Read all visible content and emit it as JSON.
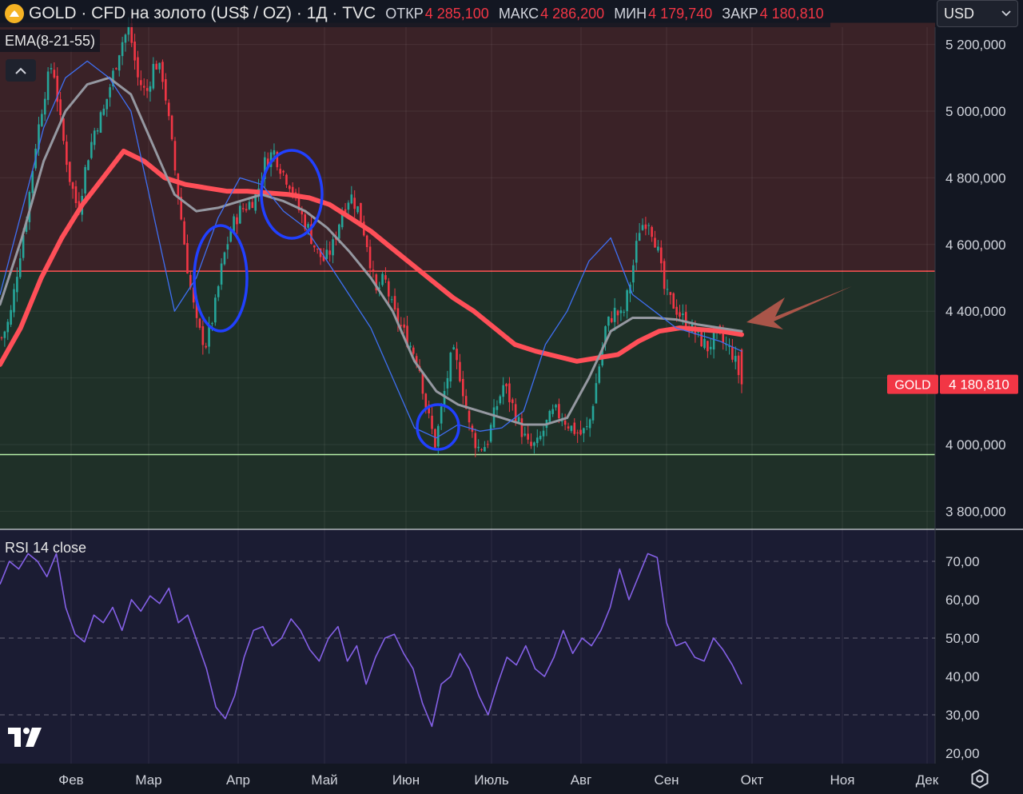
{
  "header": {
    "symbol": "GOLD · CFD на золото (US$ / OZ) · 1Д · TVC",
    "open_label": "ОТКР",
    "open_value": "4 285,100",
    "high_label": "МАКС",
    "high_value": "4 286,200",
    "low_label": "МИН",
    "low_value": "4 179,740",
    "close_label": "ЗАКР",
    "close_value": "4 180,810"
  },
  "indicator_label": "EMA(8-21-55)",
  "currency_select": {
    "value": "USD"
  },
  "rsi_label": "RSI 14 close",
  "colors": {
    "background": "#131722",
    "upper_zone": "#3a2227",
    "lower_zone": "#1f3028",
    "up_candle": "#26a69a",
    "down_candle": "#f23645",
    "ema_8": "#3f6ff2",
    "ema_21": "#9598a1",
    "ema_55": "#ff4f58",
    "rsi_line": "#8460e6",
    "annotation_circle": "#2140ff",
    "annotation_arrow": "#b85a4c",
    "price_tag": "#f23645"
  },
  "chart_data": [
    {
      "type": "candlestick",
      "title": "GOLD · CFD на золото (US$ / OZ) · 1Д · TVC",
      "ylim": [
        3760,
        5265
      ],
      "y_ticks": [
        {
          "value": 3800,
          "label": "3 800,000"
        },
        {
          "value": 4000,
          "label": "4 000,000"
        },
        {
          "value": 4200,
          "label": "4 200,000"
        },
        {
          "value": 4400,
          "label": "4 400,000"
        },
        {
          "value": 4600,
          "label": "4 600,000"
        },
        {
          "value": 4800,
          "label": "4 800,000"
        },
        {
          "value": 5000,
          "label": "5 000,000"
        },
        {
          "value": 5200,
          "label": "5 200,000"
        }
      ],
      "x_ticks": [
        "Фев",
        "Мар",
        "Апр",
        "Май",
        "Июн",
        "Июль",
        "Авг",
        "Сен",
        "Окт",
        "Ноя",
        "Дек"
      ],
      "zones": [
        {
          "name": "resistance-zone",
          "from": 4520,
          "to": 5265
        },
        {
          "name": "support-zone",
          "from": 3760,
          "to": 4520
        }
      ],
      "levels": [
        {
          "name": "resistance-line",
          "value": 4520
        },
        {
          "name": "support-line",
          "value": 3970
        }
      ],
      "last_price": {
        "symbol": "GOLD",
        "label": "4 180,810",
        "value": 4180.81
      },
      "price_path": [
        4320,
        4380,
        4550,
        4700,
        4900,
        5050,
        5150,
        4950,
        4800,
        4700,
        4850,
        4950,
        5000,
        5100,
        5200,
        5250,
        5100,
        5050,
        5150,
        5100,
        4900,
        4700,
        4500,
        4350,
        4300,
        4400,
        4550,
        4650,
        4700,
        4720,
        4750,
        4850,
        4880,
        4820,
        4780,
        4700,
        4650,
        4580,
        4550,
        4600,
        4700,
        4750,
        4700,
        4600,
        4450,
        4500,
        4400,
        4350,
        4300,
        4250,
        4100,
        4000,
        4150,
        4280,
        4200,
        4050,
        3990,
        4000,
        4100,
        4180,
        4120,
        4050,
        3990,
        4000,
        4060,
        4100,
        4080,
        4050,
        4030,
        4050,
        4200,
        4350,
        4400,
        4380,
        4500,
        4650,
        4680,
        4600,
        4450,
        4420,
        4380,
        4350,
        4320,
        4290,
        4330,
        4300,
        4270,
        4180.81
      ],
      "series": [
        {
          "name": "EMA 55",
          "values": [
            4240,
            4350,
            4500,
            4620,
            4720,
            4800,
            4880,
            4850,
            4800,
            4780,
            4770,
            4760,
            4760,
            4755,
            4750,
            4740,
            4720,
            4680,
            4640,
            4590,
            4540,
            4490,
            4440,
            4400,
            4350,
            4300,
            4280,
            4265,
            4250,
            4260,
            4270,
            4310,
            4340,
            4350,
            4345,
            4340,
            4330
          ]
        },
        {
          "name": "EMA 21",
          "values": [
            4420,
            4620,
            4850,
            5000,
            5080,
            5100,
            5050,
            4900,
            4750,
            4700,
            4710,
            4730,
            4750,
            4730,
            4700,
            4650,
            4580,
            4500,
            4400,
            4250,
            4160,
            4120,
            4100,
            4080,
            4060,
            4060,
            4080,
            4200,
            4340,
            4380,
            4380,
            4375,
            4360,
            4350,
            4340
          ]
        },
        {
          "name": "EMA 8",
          "values": [
            4450,
            4700,
            4950,
            5100,
            5150,
            5100,
            5000,
            4700,
            4400,
            4500,
            4680,
            4800,
            4780,
            4700,
            4650,
            4550,
            4450,
            4350,
            4200,
            4050,
            4020,
            4060,
            4040,
            4050,
            4100,
            4300,
            4400,
            4550,
            4620,
            4450,
            4400,
            4350,
            4330,
            4310,
            4280
          ]
        }
      ]
    },
    {
      "type": "line",
      "title": "RSI 14 close",
      "ylim": [
        18,
        75
      ],
      "y_ticks": [
        {
          "value": 20,
          "label": "20,00"
        },
        {
          "value": 30,
          "label": "30,00"
        },
        {
          "value": 40,
          "label": "40,00"
        },
        {
          "value": 50,
          "label": "50,00"
        },
        {
          "value": 60,
          "label": "60,00"
        },
        {
          "value": 70,
          "label": "70,00"
        }
      ],
      "guide_levels": [
        30,
        50,
        70
      ],
      "series": [
        {
          "name": "RSI",
          "values": [
            64,
            70,
            68,
            72,
            70,
            66,
            72,
            58,
            51,
            49,
            56,
            54,
            58,
            52,
            60,
            57,
            61,
            59,
            63,
            54,
            56,
            49,
            42,
            32,
            29,
            35,
            45,
            52,
            53,
            48,
            50,
            55,
            52,
            47,
            44,
            50,
            53,
            44,
            48,
            38,
            45,
            50,
            51,
            46,
            42,
            33,
            27,
            38,
            40,
            46,
            42,
            35,
            30,
            38,
            45,
            43,
            48,
            42,
            40,
            45,
            52,
            46,
            50,
            48,
            52,
            58,
            68,
            60,
            66,
            72,
            71,
            54,
            48,
            49,
            45,
            44,
            50,
            47,
            43,
            38
          ]
        }
      ]
    }
  ],
  "annotations": {
    "circles": 4,
    "arrow": "pointing-left"
  }
}
